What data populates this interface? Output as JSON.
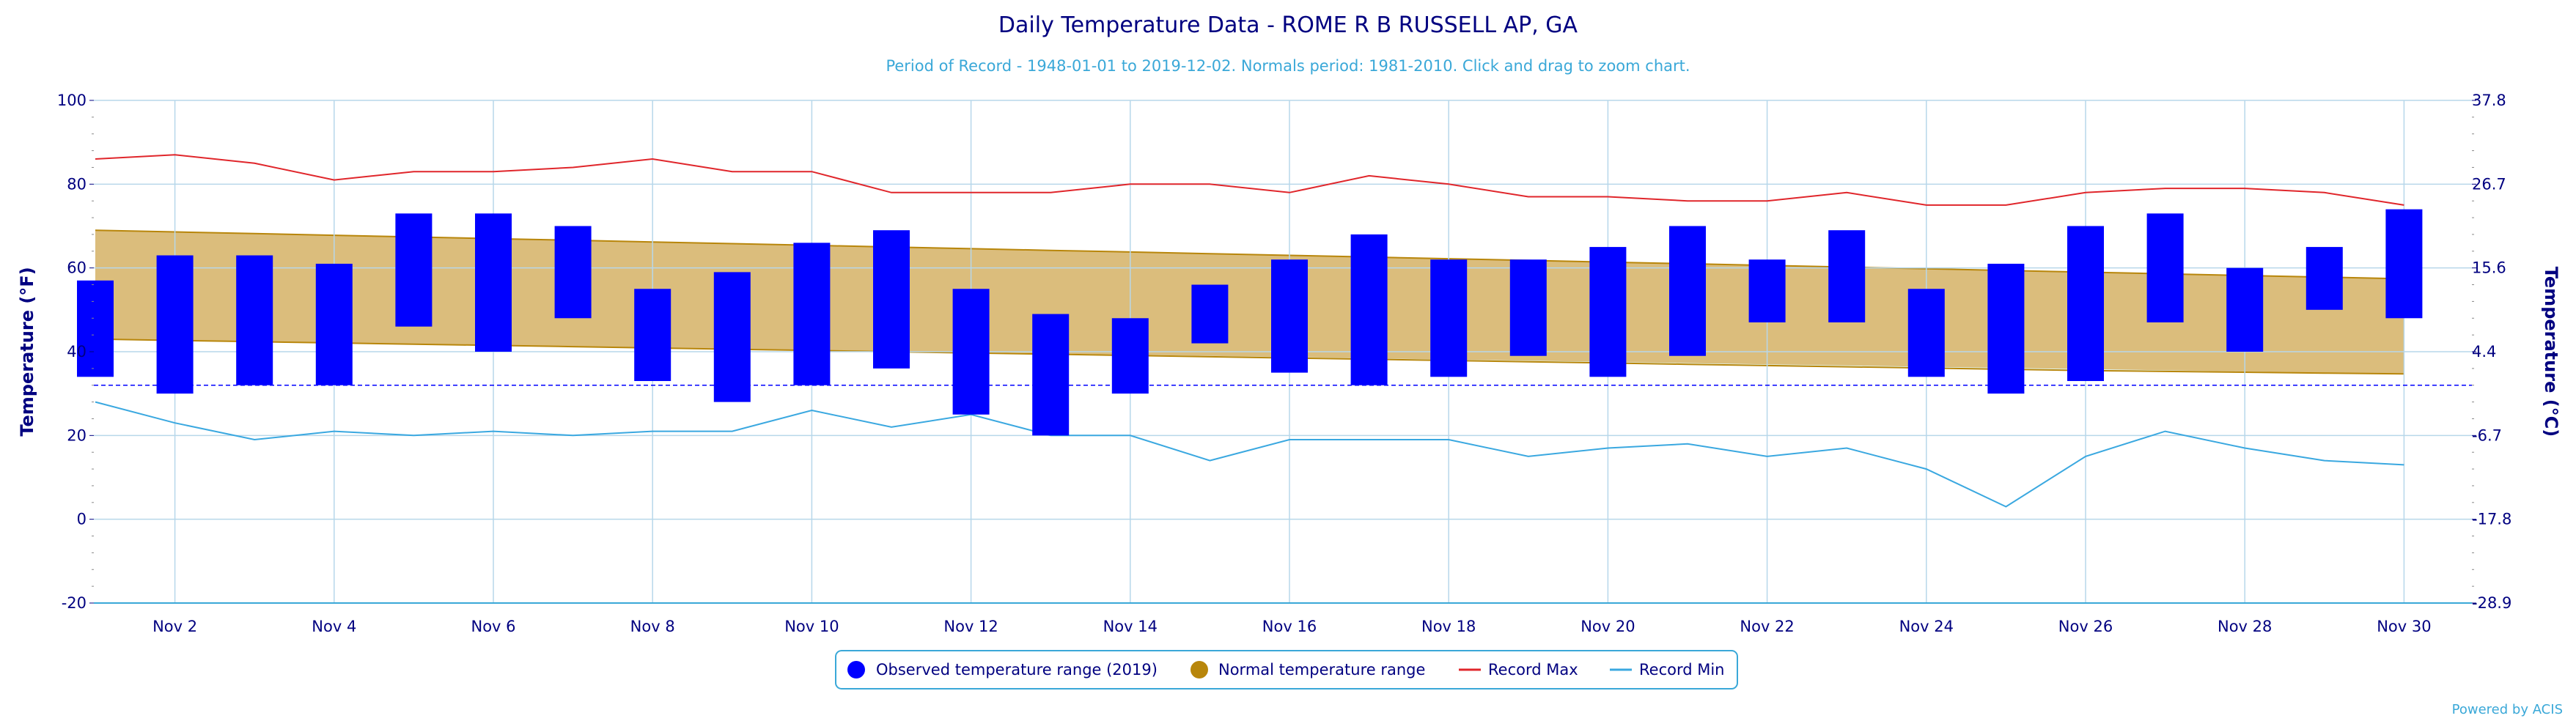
{
  "chart_data": {
    "type": "bar",
    "title": "Daily Temperature Data - ROME R B RUSSELL AP, GA",
    "subtitle": "Period of Record - 1948-01-01 to 2019-12-02. Normals period: 1981-2010. Click and drag to zoom chart.",
    "ylabel_left": "Temperature (°F)",
    "ylabel_right": "Temperature (°C)",
    "ylim": [
      -20,
      100
    ],
    "yticks_left": [
      "-20",
      "0",
      "20",
      "40",
      "60",
      "80",
      "100"
    ],
    "yticks_right": [
      "-28.9",
      "-17.8",
      "-6.7",
      "4.4",
      "15.6",
      "26.7",
      "37.8"
    ],
    "xticks": [
      "Nov 2",
      "Nov 4",
      "Nov 6",
      "Nov 8",
      "Nov 10",
      "Nov 12",
      "Nov 14",
      "Nov 16",
      "Nov 18",
      "Nov 20",
      "Nov 22",
      "Nov 24",
      "Nov 26",
      "Nov 28",
      "Nov 30"
    ],
    "xtick_days": [
      2,
      4,
      6,
      8,
      10,
      12,
      14,
      16,
      18,
      20,
      22,
      24,
      26,
      28,
      30
    ],
    "days": [
      1,
      2,
      3,
      4,
      5,
      6,
      7,
      8,
      9,
      10,
      11,
      12,
      13,
      14,
      15,
      16,
      17,
      18,
      19,
      20,
      21,
      22,
      23,
      24,
      25,
      26,
      27,
      28,
      29,
      30
    ],
    "freezing_line": 32,
    "series": [
      {
        "name": "Observed temperature range (2019)",
        "color": "#0000ff",
        "high": [
          57,
          63,
          63,
          61,
          73,
          73,
          70,
          55,
          59,
          66,
          69,
          55,
          49,
          48,
          56,
          62,
          68,
          62,
          62,
          65,
          70,
          62,
          69,
          55,
          61,
          70,
          73,
          60,
          65,
          74
        ],
        "low": [
          34,
          30,
          32,
          32,
          46,
          40,
          48,
          33,
          28,
          32,
          36,
          25,
          20,
          30,
          42,
          35,
          32,
          34,
          39,
          34,
          39,
          47,
          47,
          34,
          30,
          33,
          47,
          40,
          50,
          48
        ]
      },
      {
        "name": "Normal temperature range",
        "color": "#b8860b",
        "high": [
          69,
          68.6,
          68.2,
          67.8,
          67.4,
          67,
          66.6,
          66.2,
          65.8,
          65.4,
          65,
          64.6,
          64.2,
          63.8,
          63.4,
          63,
          62.6,
          62.2,
          61.8,
          61.4,
          61,
          60.6,
          60.2,
          59.8,
          59.4,
          59,
          58.6,
          58.2,
          57.8,
          57.4
        ],
        "low": [
          43,
          42.7,
          42.4,
          42.1,
          41.8,
          41.5,
          41.2,
          40.9,
          40.6,
          40.3,
          40,
          39.7,
          39.4,
          39.1,
          38.8,
          38.5,
          38.2,
          37.9,
          37.6,
          37.3,
          37,
          36.7,
          36.4,
          36.1,
          35.8,
          35.5,
          35.3,
          35.1,
          34.9,
          34.7
        ]
      },
      {
        "name": "Record Max",
        "color": "#e0262b",
        "values": [
          86,
          87,
          85,
          81,
          83,
          83,
          84,
          86,
          83,
          83,
          78,
          78,
          78,
          80,
          80,
          78,
          82,
          80,
          77,
          77,
          76,
          76,
          78,
          75,
          75,
          78,
          79,
          79,
          78,
          75
        ]
      },
      {
        "name": "Record Min",
        "color": "#3aa8e0",
        "values": [
          28,
          23,
          19,
          21,
          20,
          21,
          20,
          21,
          21,
          26,
          22,
          25,
          20,
          20,
          14,
          19,
          19,
          19,
          15,
          17,
          18,
          15,
          17,
          12,
          3,
          15,
          21,
          17,
          14,
          13
        ]
      }
    ],
    "legend_position": "bottom-center",
    "grid": true
  },
  "credit": "Powered by ACIS",
  "colors": {
    "text": "#000080",
    "grid": "#b7d7ea",
    "record_fill": "#ffbaba",
    "normal_fill": "#dbbd7c",
    "below_fill": "#e3ffff",
    "freezing": "#0000ff"
  }
}
